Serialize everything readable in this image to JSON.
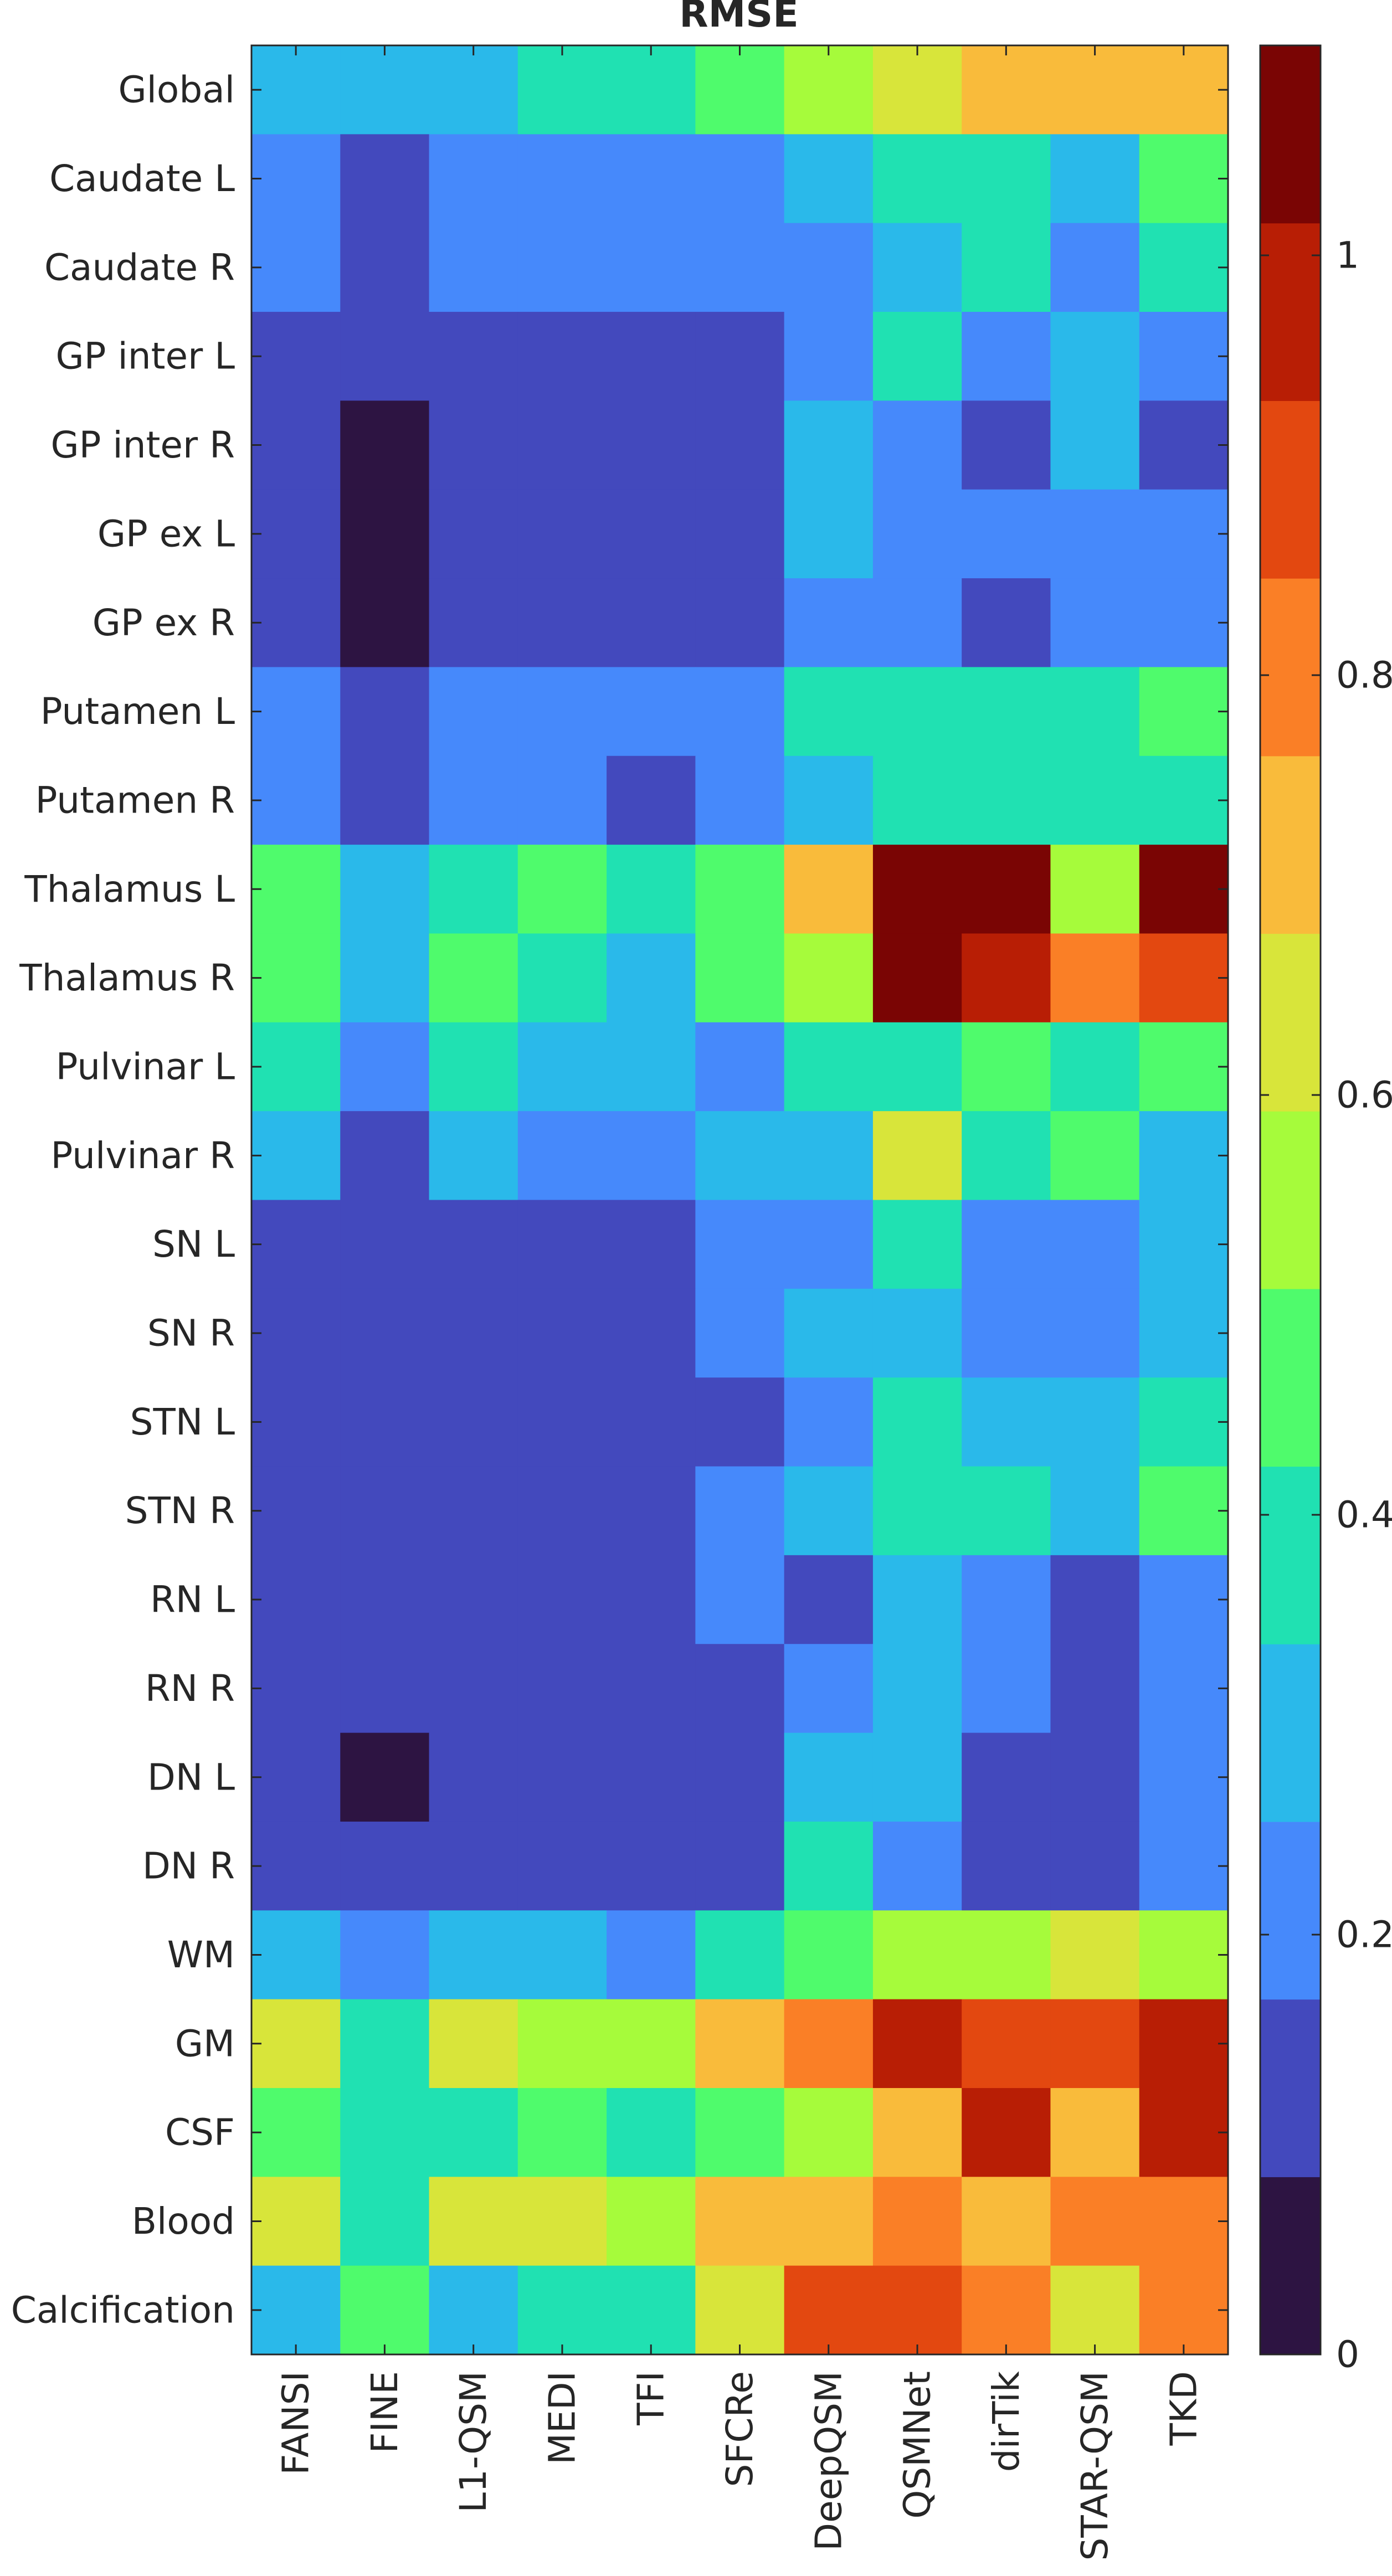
{
  "chart_data": {
    "type": "heatmap",
    "title": "RMSE",
    "xlabel": "",
    "ylabel": "",
    "columns": [
      "FANSI",
      "FINE",
      "L1-QSM",
      "MEDI",
      "TFI",
      "SFCRe",
      "DeepQSM",
      "QSMNet",
      "dirTik",
      "STAR-QSM",
      "TKD"
    ],
    "rows": [
      "Global",
      "Caudate L",
      "Caudate R",
      "GP inter L",
      "GP inter R",
      "GP ex L",
      "GP ex R",
      "Putamen L",
      "Putamen R",
      "Thalamus L",
      "Thalamus R",
      "Pulvinar L",
      "Pulvinar R",
      "SN L",
      "SN R",
      "STN L",
      "STN R",
      "RN L",
      "RN R",
      "DN L",
      "DN R",
      "WM",
      "GM",
      "CSF",
      "Blood",
      "Calcification"
    ],
    "values": [
      [
        0.3,
        0.3,
        0.3,
        0.4,
        0.4,
        0.45,
        0.55,
        0.6,
        0.7,
        0.7,
        0.7
      ],
      [
        0.2,
        0.15,
        0.2,
        0.2,
        0.2,
        0.2,
        0.3,
        0.4,
        0.4,
        0.3,
        0.45
      ],
      [
        0.2,
        0.15,
        0.2,
        0.2,
        0.2,
        0.2,
        0.2,
        0.3,
        0.4,
        0.2,
        0.4
      ],
      [
        0.15,
        0.15,
        0.15,
        0.15,
        0.15,
        0.15,
        0.2,
        0.4,
        0.2,
        0.3,
        0.2
      ],
      [
        0.15,
        0.05,
        0.15,
        0.15,
        0.15,
        0.15,
        0.3,
        0.2,
        0.15,
        0.3,
        0.15
      ],
      [
        0.15,
        0.05,
        0.15,
        0.15,
        0.15,
        0.15,
        0.3,
        0.2,
        0.2,
        0.2,
        0.2
      ],
      [
        0.15,
        0.05,
        0.15,
        0.15,
        0.15,
        0.15,
        0.2,
        0.2,
        0.15,
        0.2,
        0.2
      ],
      [
        0.2,
        0.15,
        0.2,
        0.2,
        0.2,
        0.2,
        0.4,
        0.4,
        0.4,
        0.4,
        0.45
      ],
      [
        0.2,
        0.15,
        0.2,
        0.2,
        0.15,
        0.2,
        0.3,
        0.4,
        0.4,
        0.4,
        0.4
      ],
      [
        0.45,
        0.3,
        0.4,
        0.45,
        0.4,
        0.45,
        0.7,
        1.05,
        1.05,
        0.55,
        1.05
      ],
      [
        0.45,
        0.3,
        0.45,
        0.4,
        0.3,
        0.45,
        0.55,
        1.05,
        0.95,
        0.8,
        0.9
      ],
      [
        0.4,
        0.2,
        0.4,
        0.3,
        0.3,
        0.2,
        0.4,
        0.4,
        0.45,
        0.4,
        0.45
      ],
      [
        0.3,
        0.15,
        0.3,
        0.2,
        0.2,
        0.3,
        0.3,
        0.6,
        0.4,
        0.45,
        0.3
      ],
      [
        0.15,
        0.15,
        0.15,
        0.15,
        0.15,
        0.2,
        0.2,
        0.4,
        0.2,
        0.2,
        0.3
      ],
      [
        0.15,
        0.15,
        0.15,
        0.15,
        0.15,
        0.2,
        0.3,
        0.3,
        0.2,
        0.2,
        0.3
      ],
      [
        0.15,
        0.15,
        0.15,
        0.15,
        0.15,
        0.15,
        0.2,
        0.4,
        0.3,
        0.3,
        0.4
      ],
      [
        0.15,
        0.15,
        0.15,
        0.15,
        0.15,
        0.2,
        0.3,
        0.4,
        0.4,
        0.3,
        0.45
      ],
      [
        0.15,
        0.15,
        0.15,
        0.15,
        0.15,
        0.2,
        0.15,
        0.3,
        0.2,
        0.15,
        0.2
      ],
      [
        0.15,
        0.15,
        0.15,
        0.15,
        0.15,
        0.15,
        0.2,
        0.3,
        0.2,
        0.15,
        0.2
      ],
      [
        0.15,
        0.05,
        0.15,
        0.15,
        0.15,
        0.15,
        0.3,
        0.3,
        0.15,
        0.15,
        0.2
      ],
      [
        0.15,
        0.15,
        0.15,
        0.15,
        0.15,
        0.15,
        0.4,
        0.2,
        0.15,
        0.15,
        0.2
      ],
      [
        0.3,
        0.2,
        0.3,
        0.3,
        0.2,
        0.4,
        0.45,
        0.55,
        0.55,
        0.6,
        0.55
      ],
      [
        0.6,
        0.4,
        0.6,
        0.55,
        0.55,
        0.7,
        0.8,
        0.95,
        0.9,
        0.9,
        0.95
      ],
      [
        0.45,
        0.4,
        0.4,
        0.45,
        0.4,
        0.45,
        0.55,
        0.7,
        0.95,
        0.7,
        0.95
      ],
      [
        0.6,
        0.4,
        0.6,
        0.6,
        0.55,
        0.7,
        0.7,
        0.8,
        0.7,
        0.8,
        0.8
      ],
      [
        0.3,
        0.45,
        0.3,
        0.4,
        0.4,
        0.6,
        0.9,
        0.9,
        0.8,
        0.6,
        0.8
      ]
    ],
    "colorbar": {
      "range": [
        0,
        1.1
      ],
      "ticks": [
        0,
        0.2,
        0.4,
        0.6,
        0.8,
        1
      ],
      "tick_labels": [
        "0",
        "0.2",
        "0.4",
        "0.6",
        "0.8",
        "1"
      ],
      "colors": [
        "#2d1442",
        "#4349bd",
        "#4689fb",
        "#2ab9ea",
        "#20e1b2",
        "#4ffb6c",
        "#a6fb3b",
        "#d8e53a",
        "#f9bb3b",
        "#fa7f26",
        "#e34810",
        "#b81e05",
        "#7a0504"
      ]
    }
  }
}
